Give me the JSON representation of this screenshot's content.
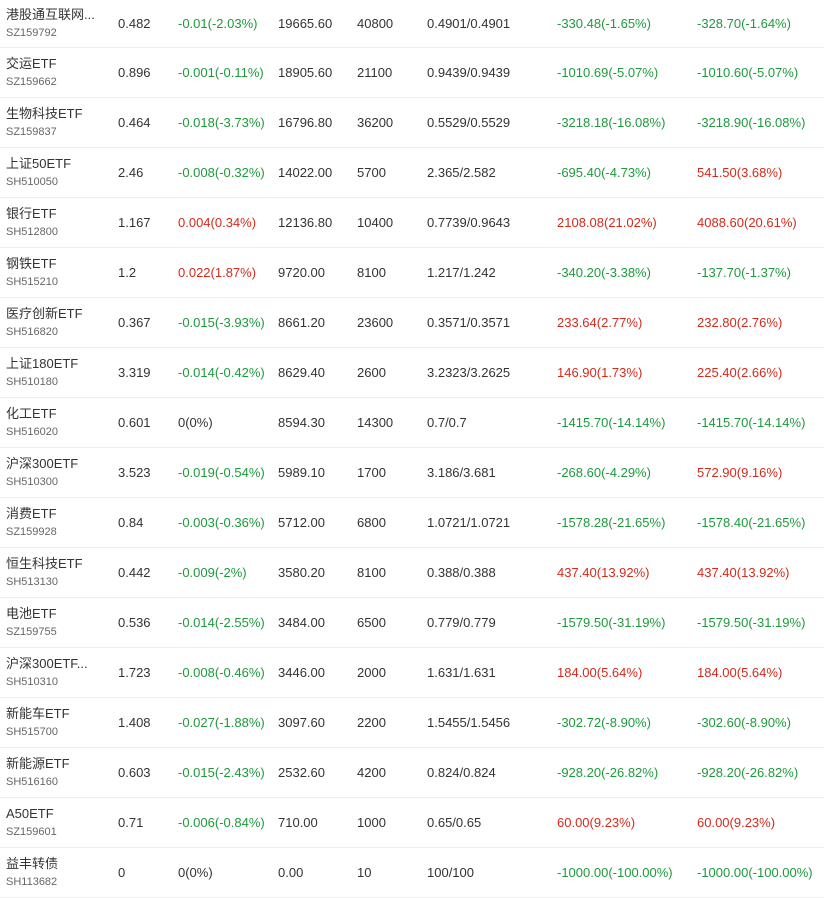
{
  "colors": {
    "up": "#d42a1c",
    "down": "#1e9a3c",
    "neutral": "#333333"
  },
  "rows": [
    {
      "name": "港股通互联网...",
      "code": "SZ159792",
      "price": "0.482",
      "change": "-0.01(-2.03%)",
      "change_dir": "down",
      "value": "19665.60",
      "qty": "40800",
      "cost": "0.4901/0.4901",
      "pl1": "-330.48(-1.65%)",
      "pl1_dir": "down",
      "pl2": "-328.70(-1.64%)",
      "pl2_dir": "down"
    },
    {
      "name": "交运ETF",
      "code": "SZ159662",
      "price": "0.896",
      "change": "-0.001(-0.11%)",
      "change_dir": "down",
      "value": "18905.60",
      "qty": "21100",
      "cost": "0.9439/0.9439",
      "pl1": "-1010.69(-5.07%)",
      "pl1_dir": "down",
      "pl2": "-1010.60(-5.07%)",
      "pl2_dir": "down"
    },
    {
      "name": "生物科技ETF",
      "code": "SZ159837",
      "price": "0.464",
      "change": "-0.018(-3.73%)",
      "change_dir": "down",
      "value": "16796.80",
      "qty": "36200",
      "cost": "0.5529/0.5529",
      "pl1": "-3218.18(-16.08%)",
      "pl1_dir": "down",
      "pl2": "-3218.90(-16.08%)",
      "pl2_dir": "down"
    },
    {
      "name": "上证50ETF",
      "code": "SH510050",
      "price": "2.46",
      "change": "-0.008(-0.32%)",
      "change_dir": "down",
      "value": "14022.00",
      "qty": "5700",
      "cost": "2.365/2.582",
      "pl1": "-695.40(-4.73%)",
      "pl1_dir": "down",
      "pl2": "541.50(3.68%)",
      "pl2_dir": "up"
    },
    {
      "name": "银行ETF",
      "code": "SH512800",
      "price": "1.167",
      "change": "0.004(0.34%)",
      "change_dir": "up",
      "value": "12136.80",
      "qty": "10400",
      "cost": "0.7739/0.9643",
      "pl1": "2108.08(21.02%)",
      "pl1_dir": "up",
      "pl2": "4088.60(20.61%)",
      "pl2_dir": "up"
    },
    {
      "name": "钢铁ETF",
      "code": "SH515210",
      "price": "1.2",
      "change": "0.022(1.87%)",
      "change_dir": "up",
      "value": "9720.00",
      "qty": "8100",
      "cost": "1.217/1.242",
      "pl1": "-340.20(-3.38%)",
      "pl1_dir": "down",
      "pl2": "-137.70(-1.37%)",
      "pl2_dir": "down"
    },
    {
      "name": "医疗创新ETF",
      "code": "SH516820",
      "price": "0.367",
      "change": "-0.015(-3.93%)",
      "change_dir": "down",
      "value": "8661.20",
      "qty": "23600",
      "cost": "0.3571/0.3571",
      "pl1": "233.64(2.77%)",
      "pl1_dir": "up",
      "pl2": "232.80(2.76%)",
      "pl2_dir": "up"
    },
    {
      "name": "上证180ETF",
      "code": "SH510180",
      "price": "3.319",
      "change": "-0.014(-0.42%)",
      "change_dir": "down",
      "value": "8629.40",
      "qty": "2600",
      "cost": "3.2323/3.2625",
      "pl1": "146.90(1.73%)",
      "pl1_dir": "up",
      "pl2": "225.40(2.66%)",
      "pl2_dir": "up"
    },
    {
      "name": "化工ETF",
      "code": "SH516020",
      "price": "0.601",
      "change": "0(0%)",
      "change_dir": "neutral",
      "value": "8594.30",
      "qty": "14300",
      "cost": "0.7/0.7",
      "pl1": "-1415.70(-14.14%)",
      "pl1_dir": "down",
      "pl2": "-1415.70(-14.14%)",
      "pl2_dir": "down"
    },
    {
      "name": "沪深300ETF",
      "code": "SH510300",
      "price": "3.523",
      "change": "-0.019(-0.54%)",
      "change_dir": "down",
      "value": "5989.10",
      "qty": "1700",
      "cost": "3.186/3.681",
      "pl1": "-268.60(-4.29%)",
      "pl1_dir": "down",
      "pl2": "572.90(9.16%)",
      "pl2_dir": "up"
    },
    {
      "name": "消费ETF",
      "code": "SZ159928",
      "price": "0.84",
      "change": "-0.003(-0.36%)",
      "change_dir": "down",
      "value": "5712.00",
      "qty": "6800",
      "cost": "1.0721/1.0721",
      "pl1": "-1578.28(-21.65%)",
      "pl1_dir": "down",
      "pl2": "-1578.40(-21.65%)",
      "pl2_dir": "down"
    },
    {
      "name": "恒生科技ETF",
      "code": "SH513130",
      "price": "0.442",
      "change": "-0.009(-2%)",
      "change_dir": "down",
      "value": "3580.20",
      "qty": "8100",
      "cost": "0.388/0.388",
      "pl1": "437.40(13.92%)",
      "pl1_dir": "up",
      "pl2": "437.40(13.92%)",
      "pl2_dir": "up"
    },
    {
      "name": "电池ETF",
      "code": "SZ159755",
      "price": "0.536",
      "change": "-0.014(-2.55%)",
      "change_dir": "down",
      "value": "3484.00",
      "qty": "6500",
      "cost": "0.779/0.779",
      "pl1": "-1579.50(-31.19%)",
      "pl1_dir": "down",
      "pl2": "-1579.50(-31.19%)",
      "pl2_dir": "down"
    },
    {
      "name": "沪深300ETF...",
      "code": "SH510310",
      "price": "1.723",
      "change": "-0.008(-0.46%)",
      "change_dir": "down",
      "value": "3446.00",
      "qty": "2000",
      "cost": "1.631/1.631",
      "pl1": "184.00(5.64%)",
      "pl1_dir": "up",
      "pl2": "184.00(5.64%)",
      "pl2_dir": "up"
    },
    {
      "name": "新能车ETF",
      "code": "SH515700",
      "price": "1.408",
      "change": "-0.027(-1.88%)",
      "change_dir": "down",
      "value": "3097.60",
      "qty": "2200",
      "cost": "1.5455/1.5456",
      "pl1": "-302.72(-8.90%)",
      "pl1_dir": "down",
      "pl2": "-302.60(-8.90%)",
      "pl2_dir": "down"
    },
    {
      "name": "新能源ETF",
      "code": "SH516160",
      "price": "0.603",
      "change": "-0.015(-2.43%)",
      "change_dir": "down",
      "value": "2532.60",
      "qty": "4200",
      "cost": "0.824/0.824",
      "pl1": "-928.20(-26.82%)",
      "pl1_dir": "down",
      "pl2": "-928.20(-26.82%)",
      "pl2_dir": "down"
    },
    {
      "name": "A50ETF",
      "code": "SZ159601",
      "price": "0.71",
      "change": "-0.006(-0.84%)",
      "change_dir": "down",
      "value": "710.00",
      "qty": "1000",
      "cost": "0.65/0.65",
      "pl1": "60.00(9.23%)",
      "pl1_dir": "up",
      "pl2": "60.00(9.23%)",
      "pl2_dir": "up"
    },
    {
      "name": "益丰转债",
      "code": "SH113682",
      "price": "0",
      "change": "0(0%)",
      "change_dir": "neutral",
      "value": "0.00",
      "qty": "10",
      "cost": "100/100",
      "pl1": "-1000.00(-100.00%)",
      "pl1_dir": "down",
      "pl2": "-1000.00(-100.00%)",
      "pl2_dir": "down"
    }
  ]
}
